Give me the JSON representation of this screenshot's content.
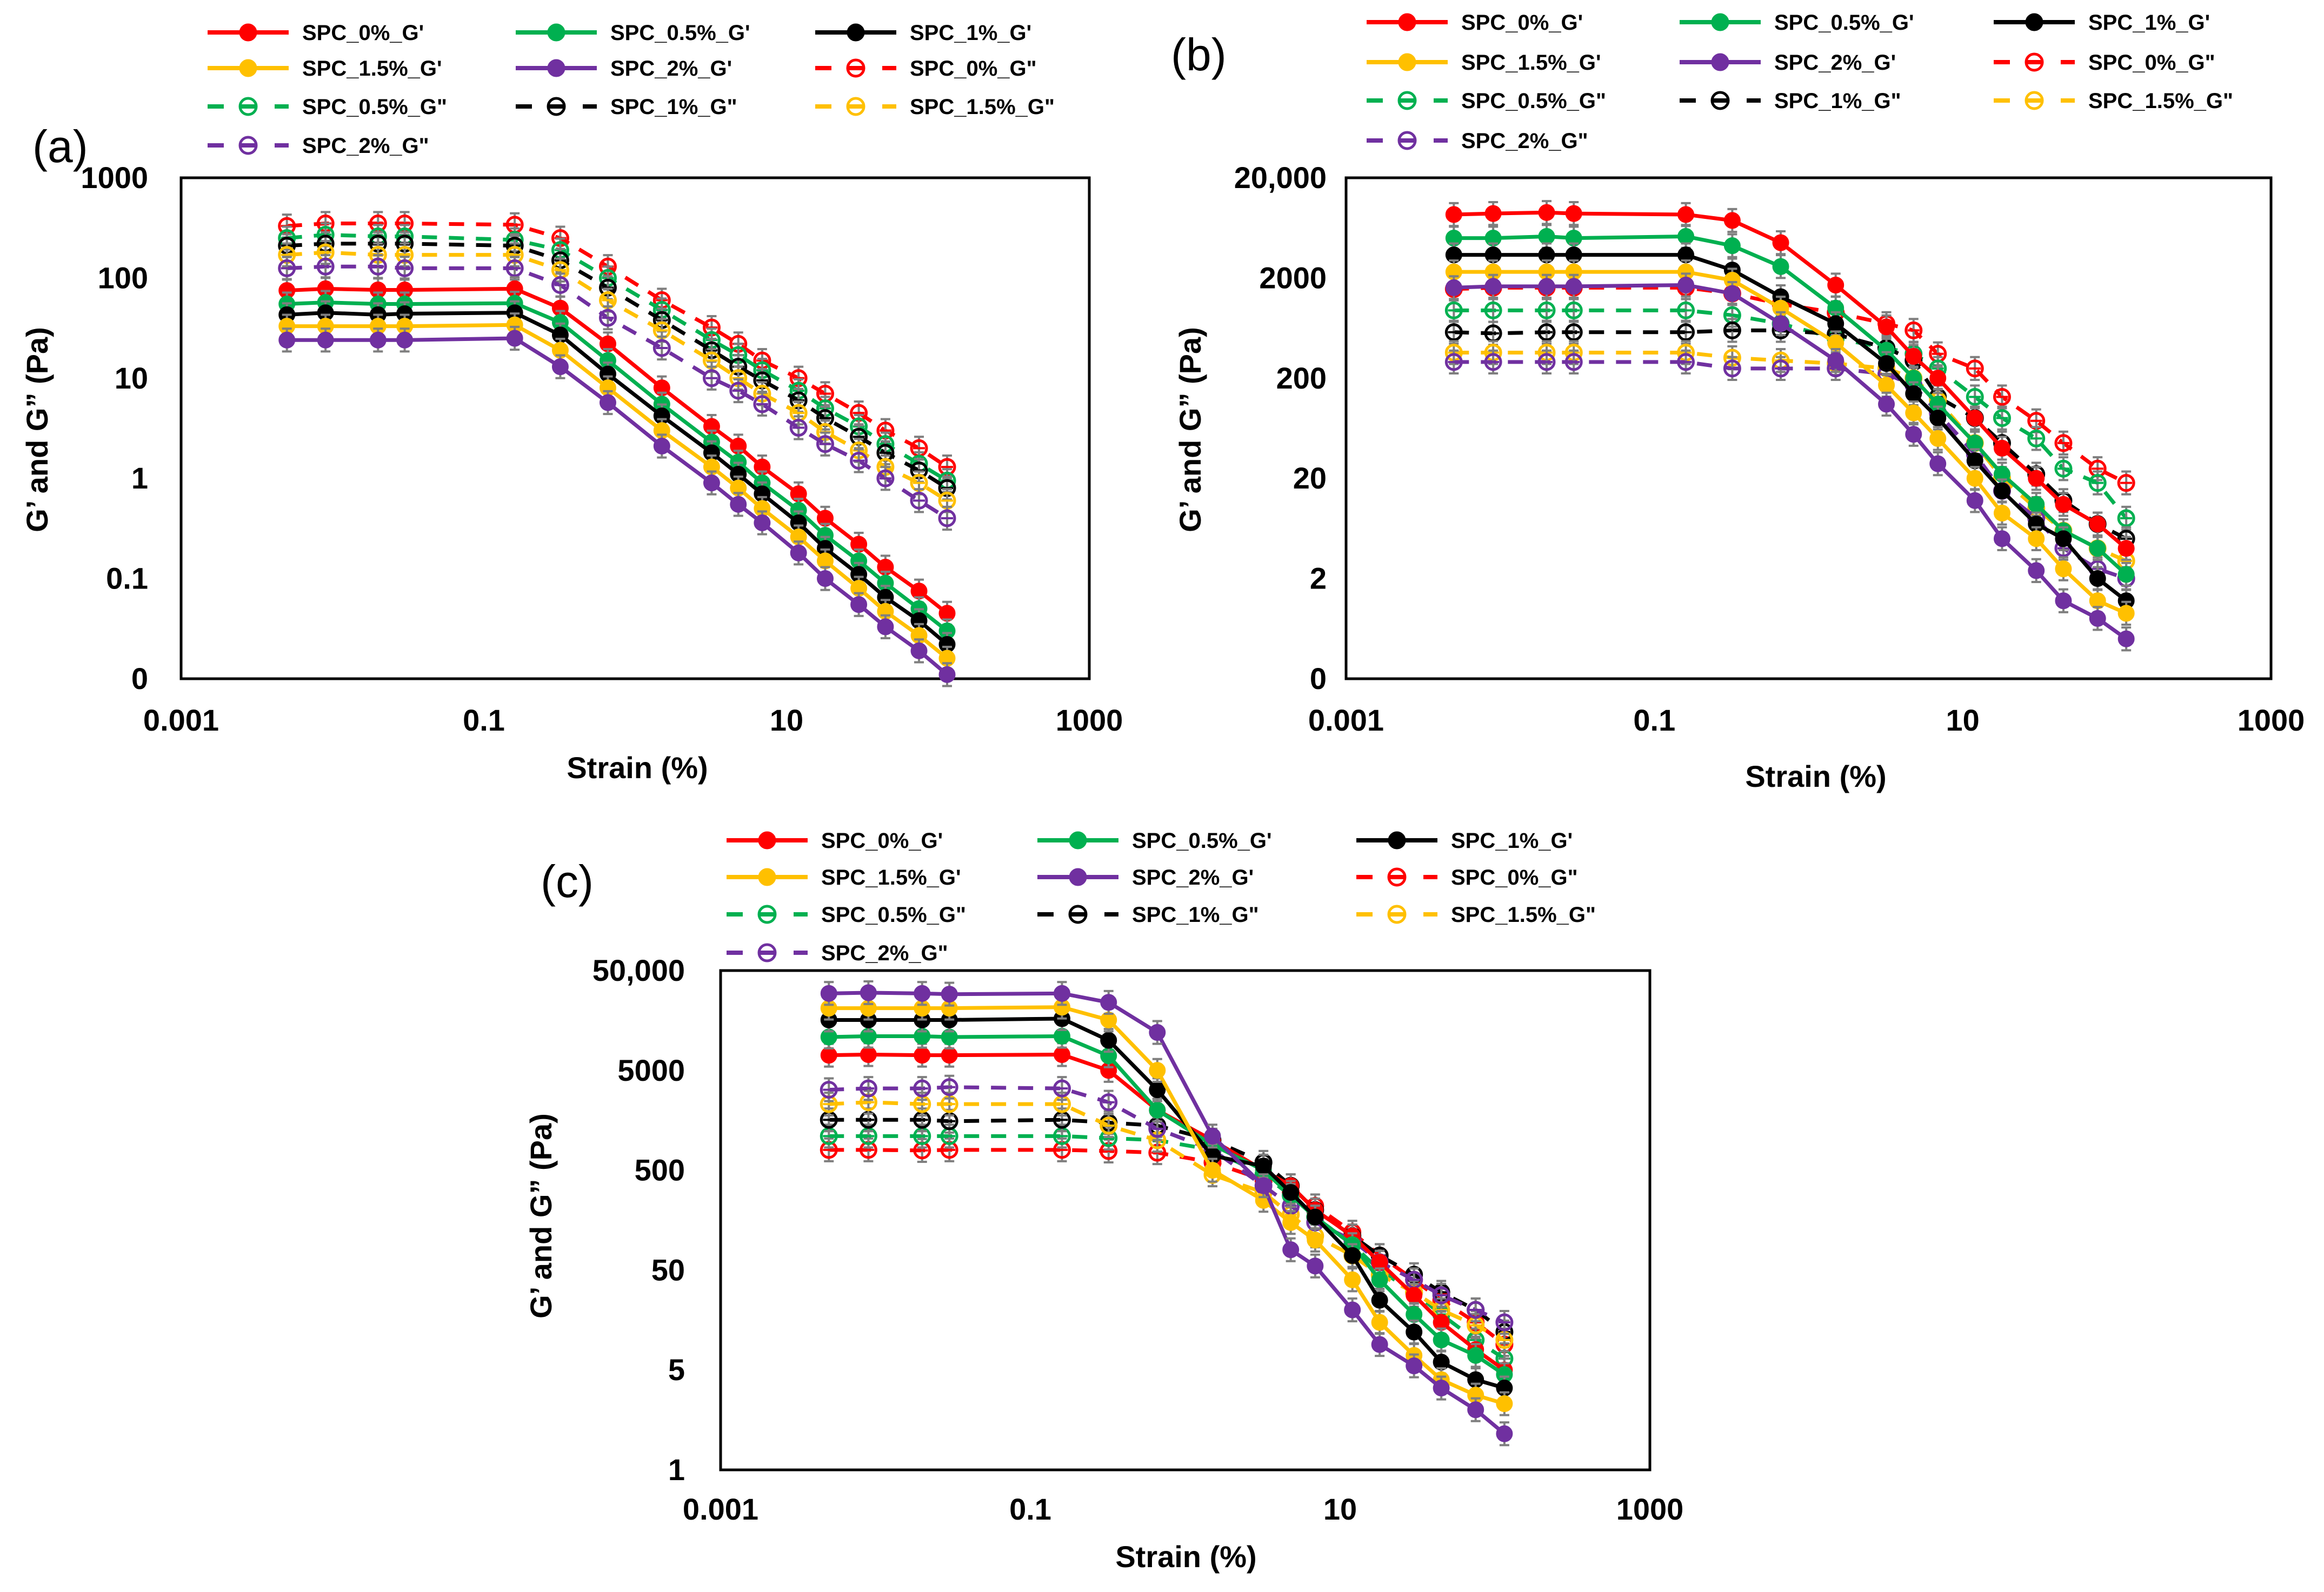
{
  "chart_data": [
    {
      "panel": "(a)",
      "type": "line",
      "xlabel": "Strain (%)",
      "ylabel": "G’ and G” (Pa)",
      "xscale": "log",
      "yscale": "log",
      "xlim": [
        0.001,
        1000
      ],
      "xticks": [
        0.001,
        0.1,
        10,
        1000
      ],
      "xtick_labels": [
        "0.001",
        "0.1",
        "10",
        "1000"
      ],
      "ylim": [
        0.01,
        1000
      ],
      "yticks": [
        0.01,
        0.1,
        1,
        10,
        100,
        1000
      ],
      "ytick_labels": [
        "0",
        "0.1",
        "1",
        "10",
        "100",
        "1000"
      ],
      "legend": "top",
      "x": [
        0.005,
        0.009,
        0.02,
        0.03,
        0.16,
        0.32,
        0.66,
        1.5,
        3.2,
        4.8,
        6.9,
        12,
        18,
        30,
        45,
        75,
        115
      ],
      "series": [
        {
          "name": "SPC_0%_G'",
          "color": "#FF0000",
          "kind": "storage",
          "values": [
            75,
            78,
            76,
            76,
            78,
            50,
            22,
            8,
            3.3,
            2.1,
            1.3,
            0.7,
            0.4,
            0.22,
            0.13,
            0.075,
            0.045
          ]
        },
        {
          "name": "SPC_0.5%_G'",
          "color": "#00B050",
          "kind": "storage",
          "values": [
            55,
            57,
            55,
            55,
            56,
            36,
            15,
            5.5,
            2.3,
            1.45,
            0.9,
            0.48,
            0.27,
            0.15,
            0.09,
            0.05,
            0.03
          ]
        },
        {
          "name": "SPC_1%_G'",
          "color": "#000000",
          "kind": "storage",
          "values": [
            43,
            45,
            43,
            44,
            45,
            27,
            11,
            4.2,
            1.8,
            1.1,
            0.7,
            0.36,
            0.2,
            0.11,
            0.065,
            0.038,
            0.022
          ]
        },
        {
          "name": "SPC_1.5%_G'",
          "color": "#FFC000",
          "kind": "storage",
          "values": [
            33,
            33,
            33,
            33,
            34,
            19,
            8,
            3,
            1.3,
            0.8,
            0.5,
            0.26,
            0.15,
            0.08,
            0.047,
            0.027,
            0.016
          ]
        },
        {
          "name": "SPC_2%_G'",
          "color": "#7030A0",
          "kind": "storage",
          "values": [
            24,
            24,
            24,
            24,
            25,
            13,
            5.7,
            2.1,
            0.9,
            0.55,
            0.36,
            0.18,
            0.1,
            0.055,
            0.033,
            0.019,
            0.011
          ]
        },
        {
          "name": "SPC_0%_G\"",
          "color": "#FF0000",
          "kind": "loss",
          "values": [
            330,
            350,
            350,
            350,
            340,
            250,
            130,
            60,
            32,
            22,
            15,
            10,
            7,
            4.5,
            3,
            2,
            1.3
          ]
        },
        {
          "name": "SPC_0.5%_G\"",
          "color": "#00B050",
          "kind": "loss",
          "values": [
            250,
            270,
            260,
            260,
            240,
            190,
            100,
            48,
            24,
            17,
            12,
            7.5,
            5,
            3.3,
            2.2,
            1.4,
            0.95
          ]
        },
        {
          "name": "SPC_1%_G\"",
          "color": "#000000",
          "kind": "loss",
          "values": [
            210,
            220,
            220,
            220,
            210,
            150,
            80,
            38,
            19,
            13,
            9.5,
            6,
            4,
            2.6,
            1.8,
            1.2,
            0.8
          ]
        },
        {
          "name": "SPC_1.5%_G\"",
          "color": "#FFC000",
          "kind": "loss",
          "values": [
            170,
            180,
            170,
            170,
            170,
            120,
            60,
            30,
            15,
            10,
            7,
            4.5,
            2.9,
            1.9,
            1.3,
            0.9,
            0.6
          ]
        },
        {
          "name": "SPC_2%_G\"",
          "color": "#7030A0",
          "kind": "loss",
          "values": [
            125,
            130,
            130,
            125,
            125,
            85,
            40,
            20,
            10,
            7.5,
            5.5,
            3.2,
            2.2,
            1.5,
            1,
            0.6,
            0.4
          ]
        }
      ]
    },
    {
      "panel": "(b)",
      "type": "line",
      "xlabel": "Strain (%)",
      "ylabel": "G’ and G” (Pa)",
      "xscale": "log",
      "yscale": "log",
      "xlim": [
        0.001,
        1000
      ],
      "xticks": [
        0.001,
        0.1,
        10,
        1000
      ],
      "xtick_labels": [
        "0.001",
        "0.1",
        "10",
        "1000"
      ],
      "ylim": [
        0.2,
        20000
      ],
      "yticks": [
        0.2,
        2,
        20,
        200,
        2000,
        20000
      ],
      "ytick_labels": [
        "0",
        "2",
        "20",
        "200",
        "2000",
        "20,000"
      ],
      "legend": "top",
      "x": [
        0.005,
        0.009,
        0.02,
        0.03,
        0.16,
        0.32,
        0.66,
        1.5,
        3.2,
        4.8,
        6.9,
        12,
        18,
        30,
        45,
        75,
        115
      ],
      "series": [
        {
          "name": "SPC_0%_G'",
          "color": "#FF0000",
          "kind": "storage",
          "values": [
            8600,
            8800,
            9000,
            8800,
            8600,
            7500,
            4500,
            1700,
            650,
            330,
            200,
            80,
            40,
            20,
            11,
            7,
            4
          ]
        },
        {
          "name": "SPC_0.5%_G'",
          "color": "#00B050",
          "kind": "storage",
          "values": [
            5000,
            5000,
            5200,
            5000,
            5200,
            4200,
            2600,
            1000,
            380,
            200,
            110,
            45,
            22,
            11,
            6,
            4,
            2.2
          ]
        },
        {
          "name": "SPC_1%_G'",
          "color": "#000000",
          "kind": "storage",
          "values": [
            3400,
            3400,
            3400,
            3400,
            3400,
            2400,
            1300,
            700,
            280,
            140,
            80,
            30,
            15,
            7,
            5,
            2,
            1.2
          ]
        },
        {
          "name": "SPC_1.5%_G'",
          "color": "#FFC000",
          "kind": "storage",
          "values": [
            2300,
            2300,
            2300,
            2300,
            2300,
            1900,
            1000,
            450,
            170,
            90,
            50,
            20,
            9,
            5,
            2.5,
            1.2,
            0.9
          ]
        },
        {
          "name": "SPC_2%_G'",
          "color": "#7030A0",
          "kind": "storage",
          "values": [
            1600,
            1650,
            1650,
            1650,
            1700,
            1400,
            700,
            300,
            110,
            55,
            28,
            12,
            5,
            2.4,
            1.2,
            0.8,
            0.5
          ]
        },
        {
          "name": "SPC_0%_G\"",
          "color": "#FF0000",
          "kind": "loss",
          "values": [
            1550,
            1600,
            1600,
            1600,
            1600,
            1400,
            1100,
            900,
            700,
            600,
            350,
            250,
            130,
            75,
            45,
            25,
            18
          ]
        },
        {
          "name": "SPC_0.5%_G\"",
          "color": "#00B050",
          "kind": "loss",
          "values": [
            950,
            950,
            950,
            950,
            950,
            850,
            700,
            500,
            400,
            350,
            250,
            130,
            80,
            50,
            25,
            18,
            8
          ]
        },
        {
          "name": "SPC_1%_G\"",
          "color": "#000000",
          "kind": "loss",
          "values": [
            575,
            560,
            575,
            575,
            575,
            600,
            600,
            550,
            400,
            300,
            130,
            80,
            45,
            22,
            12,
            7,
            5
          ]
        },
        {
          "name": "SPC_1.5%_G\"",
          "color": "#FFC000",
          "kind": "loss",
          "values": [
            360,
            360,
            360,
            360,
            360,
            320,
            300,
            280,
            250,
            200,
            120,
            45,
            20,
            10,
            6,
            4,
            3
          ]
        },
        {
          "name": "SPC_2%_G\"",
          "color": "#7030A0",
          "kind": "loss",
          "values": [
            290,
            290,
            290,
            290,
            290,
            250,
            250,
            250,
            220,
            170,
            90,
            35,
            15,
            8,
            4,
            2.5,
            2
          ]
        }
      ]
    },
    {
      "panel": "(c)",
      "type": "line",
      "xlabel": "Strain (%)",
      "ylabel": "G’ and G” (Pa)",
      "xscale": "log",
      "yscale": "log",
      "xlim": [
        0.001,
        1000
      ],
      "xticks": [
        0.001,
        0.1,
        10,
        1000
      ],
      "xtick_labels": [
        "0.001",
        "0.1",
        "10",
        "1000"
      ],
      "ylim": [
        0.5,
        50000
      ],
      "yticks": [
        0.5,
        5,
        50,
        500,
        5000,
        50000
      ],
      "ytick_labels": [
        "1",
        "5",
        "50",
        "500",
        "5000",
        "50,000"
      ],
      "legend": "top",
      "x": [
        0.005,
        0.009,
        0.02,
        0.03,
        0.16,
        0.32,
        0.66,
        1.5,
        3.2,
        4.8,
        6.9,
        12,
        18,
        30,
        45,
        75,
        115
      ],
      "series": [
        {
          "name": "SPC_0%_G'",
          "color": "#FF0000",
          "kind": "storage",
          "values": [
            7100,
            7200,
            7100,
            7100,
            7200,
            5000,
            2000,
            1000,
            500,
            350,
            200,
            110,
            60,
            28,
            15,
            8,
            5
          ]
        },
        {
          "name": "SPC_0.5%_G'",
          "color": "#00B050",
          "kind": "storage",
          "values": [
            10800,
            11000,
            11000,
            10800,
            11000,
            7000,
            2000,
            900,
            500,
            280,
            170,
            90,
            40,
            18,
            10,
            7,
            4.5
          ]
        },
        {
          "name": "SPC_1%_G'",
          "color": "#000000",
          "kind": "storage",
          "values": [
            16000,
            16000,
            16000,
            16000,
            16500,
            10000,
            3200,
            700,
            550,
            300,
            170,
            70,
            25,
            12,
            6,
            4,
            3.3
          ]
        },
        {
          "name": "SPC_1.5%_G'",
          "color": "#FFC000",
          "kind": "storage",
          "values": [
            21000,
            21000,
            21000,
            21000,
            21500,
            16000,
            5000,
            500,
            250,
            150,
            100,
            40,
            15,
            7,
            4,
            2.8,
            2.3
          ]
        },
        {
          "name": "SPC_2%_G'",
          "color": "#7030A0",
          "kind": "storage",
          "values": [
            29500,
            30000,
            29500,
            29000,
            29500,
            24000,
            12000,
            1100,
            350,
            80,
            55,
            20,
            9,
            5.5,
            3.3,
            2,
            1.15
          ]
        },
        {
          "name": "SPC_0%_G\"",
          "color": "#FF0000",
          "kind": "loss",
          "values": [
            800,
            800,
            790,
            800,
            800,
            780,
            750,
            600,
            400,
            300,
            220,
            120,
            70,
            40,
            25,
            15,
            9
          ]
        },
        {
          "name": "SPC_0.5%_G\"",
          "color": "#00B050",
          "kind": "loss",
          "values": [
            1100,
            1100,
            1100,
            1100,
            1100,
            1050,
            1000,
            800,
            450,
            280,
            170,
            90,
            50,
            30,
            18,
            10,
            6.5
          ]
        },
        {
          "name": "SPC_1%_G\"",
          "color": "#000000",
          "kind": "loss",
          "values": [
            1600,
            1600,
            1600,
            1550,
            1600,
            1500,
            1400,
            1000,
            600,
            350,
            200,
            110,
            70,
            45,
            30,
            20,
            12
          ]
        },
        {
          "name": "SPC_1.5%_G\"",
          "color": "#FFC000",
          "kind": "loss",
          "values": [
            2300,
            2400,
            2300,
            2300,
            2300,
            1400,
            1000,
            450,
            300,
            180,
            110,
            70,
            45,
            30,
            20,
            14,
            10
          ]
        },
        {
          "name": "SPC_2%_G\"",
          "color": "#7030A0",
          "kind": "loss",
          "values": [
            3200,
            3300,
            3300,
            3400,
            3300,
            2400,
            1300,
            800,
            350,
            220,
            150,
            100,
            60,
            40,
            28,
            20,
            15
          ]
        }
      ]
    }
  ]
}
